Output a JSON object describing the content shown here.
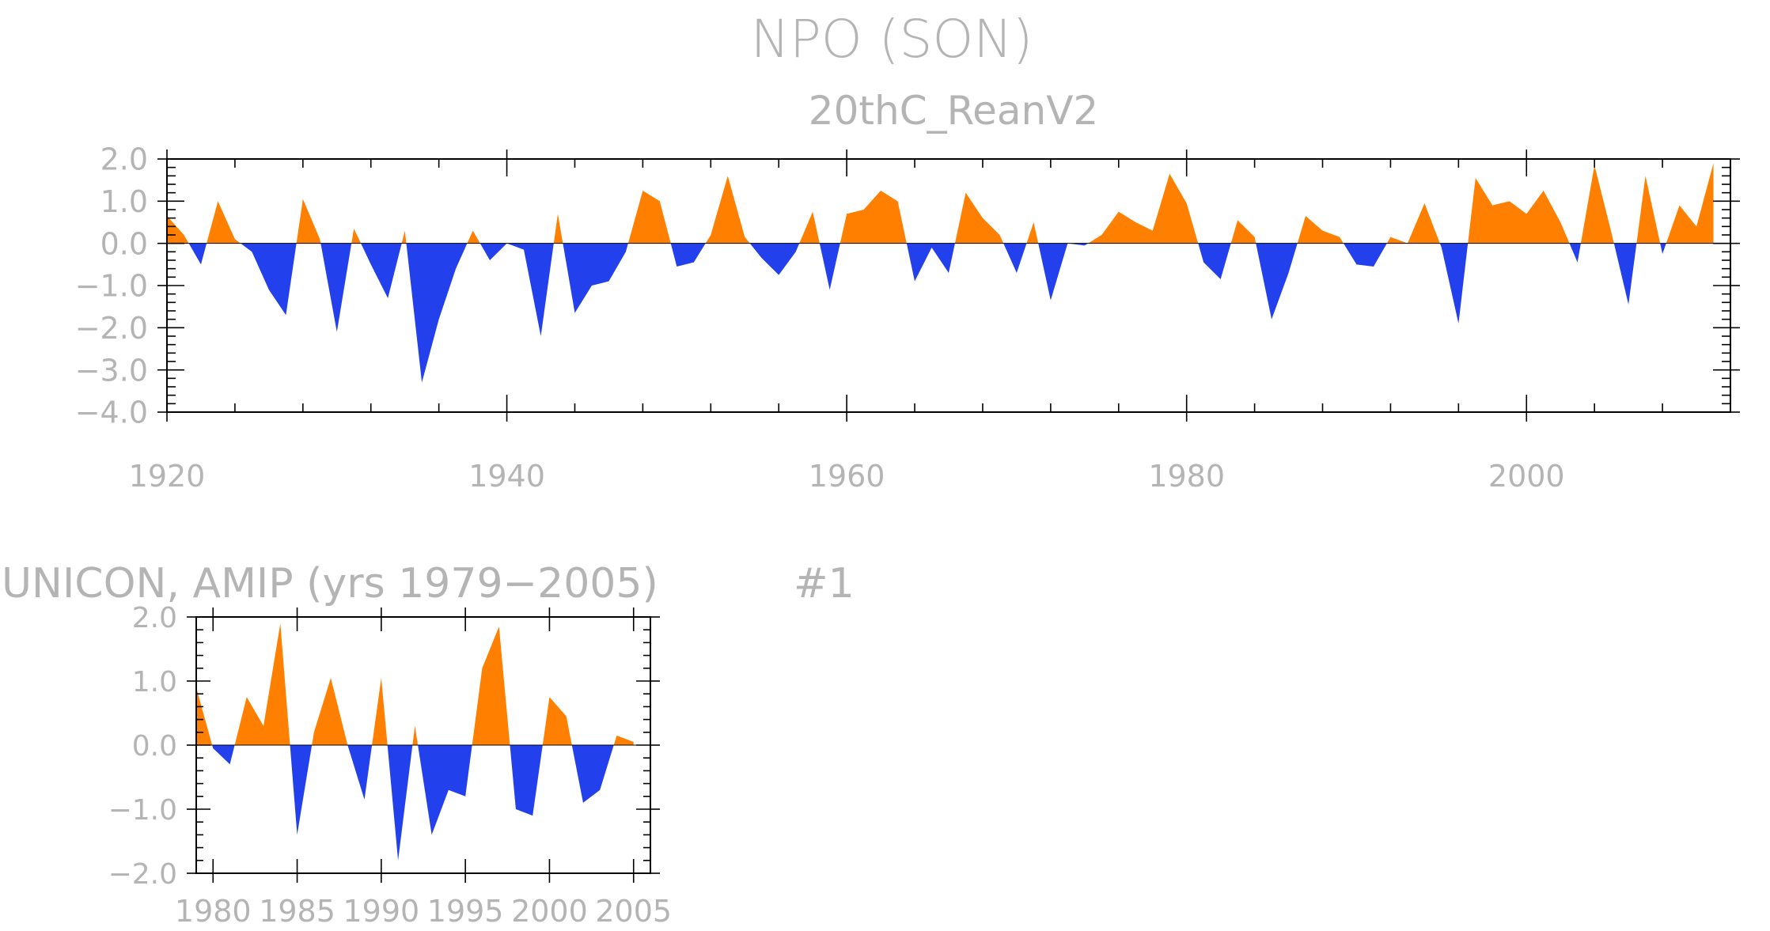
{
  "colors": {
    "positive": "#ff8000",
    "negative": "#2241ec",
    "text": "#b4b4b4",
    "frame": "#000000"
  },
  "page": {
    "title": "NPO (SON)"
  },
  "chart_data": [
    {
      "type": "area",
      "title": "20thC_ReanV2",
      "xlabel": "",
      "ylabel": "",
      "xlim": [
        1920,
        2012
      ],
      "ylim": [
        -4,
        2
      ],
      "x_ticks": [
        1920,
        1940,
        1960,
        1980,
        2000
      ],
      "x_tick_labels": [
        "1920",
        "1940",
        "1960",
        "1980",
        "2000"
      ],
      "y_ticks": [
        2,
        1,
        0,
        -1,
        -2,
        -3,
        -4
      ],
      "y_tick_labels": [
        "2.0",
        "1.0",
        "0.0",
        "−1.0",
        "−2.0",
        "−3.0",
        "−4.0"
      ],
      "grid": false,
      "fill_above_zero": "positive",
      "fill_below_zero": "negative",
      "series": [
        {
          "x_start": 1920,
          "values": [
            0.65,
            0.2,
            -0.5,
            1.0,
            0.1,
            -0.2,
            -1.1,
            -1.7,
            1.05,
            0.1,
            -2.1,
            0.35,
            -0.5,
            -1.3,
            0.3,
            -3.3,
            -1.8,
            -0.6,
            0.3,
            -0.4,
            0.0,
            -0.15,
            -2.2,
            0.7,
            -1.65,
            -1.0,
            -0.9,
            -0.2,
            1.25,
            1.0,
            -0.55,
            -0.45,
            0.2,
            1.6,
            0.15,
            -0.35,
            -0.75,
            -0.2,
            0.75,
            -1.1,
            0.7,
            0.8,
            1.25,
            1.0,
            -0.9,
            -0.1,
            -0.7,
            1.2,
            0.6,
            0.2,
            -0.7,
            0.5,
            -1.35,
            0.0,
            -0.05,
            0.2,
            0.75,
            0.5,
            0.3,
            1.65,
            0.95,
            -0.45,
            -0.85,
            0.55,
            0.15,
            -1.8,
            -0.7,
            0.65,
            0.3,
            0.15,
            -0.5,
            -0.55,
            0.15,
            0.0,
            0.95,
            -0.1,
            -1.9,
            1.55,
            0.9,
            1.0,
            0.7,
            1.25,
            0.5,
            -0.45,
            1.85,
            0.25,
            -1.45,
            1.6,
            -0.25,
            0.9,
            0.4,
            1.9
          ]
        }
      ]
    },
    {
      "type": "area",
      "title": "UNICON, AMIP (yrs 1979−2005)",
      "annotation": "#1",
      "xlabel": "",
      "ylabel": "",
      "xlim": [
        1979,
        2006
      ],
      "ylim": [
        -2,
        2
      ],
      "x_ticks": [
        1980,
        1985,
        1990,
        1995,
        2000,
        2005
      ],
      "x_tick_labels": [
        "1980",
        "1985",
        "1990",
        "1995",
        "2000",
        "2005"
      ],
      "y_ticks": [
        2,
        1,
        0,
        -1,
        -2
      ],
      "y_tick_labels": [
        "2.0",
        "1.0",
        "0.0",
        "−1.0",
        "−2.0"
      ],
      "grid": false,
      "fill_above_zero": "positive",
      "fill_below_zero": "negative",
      "series": [
        {
          "x_start": 1979,
          "values": [
            0.9,
            -0.05,
            -0.3,
            0.75,
            0.3,
            1.9,
            -1.4,
            0.2,
            1.05,
            0.0,
            -0.85,
            1.05,
            -1.8,
            0.3,
            -1.4,
            -0.7,
            -0.8,
            1.2,
            1.85,
            -1.0,
            -1.1,
            0.75,
            0.45,
            -0.9,
            -0.7,
            0.15,
            0.05
          ]
        }
      ]
    }
  ]
}
